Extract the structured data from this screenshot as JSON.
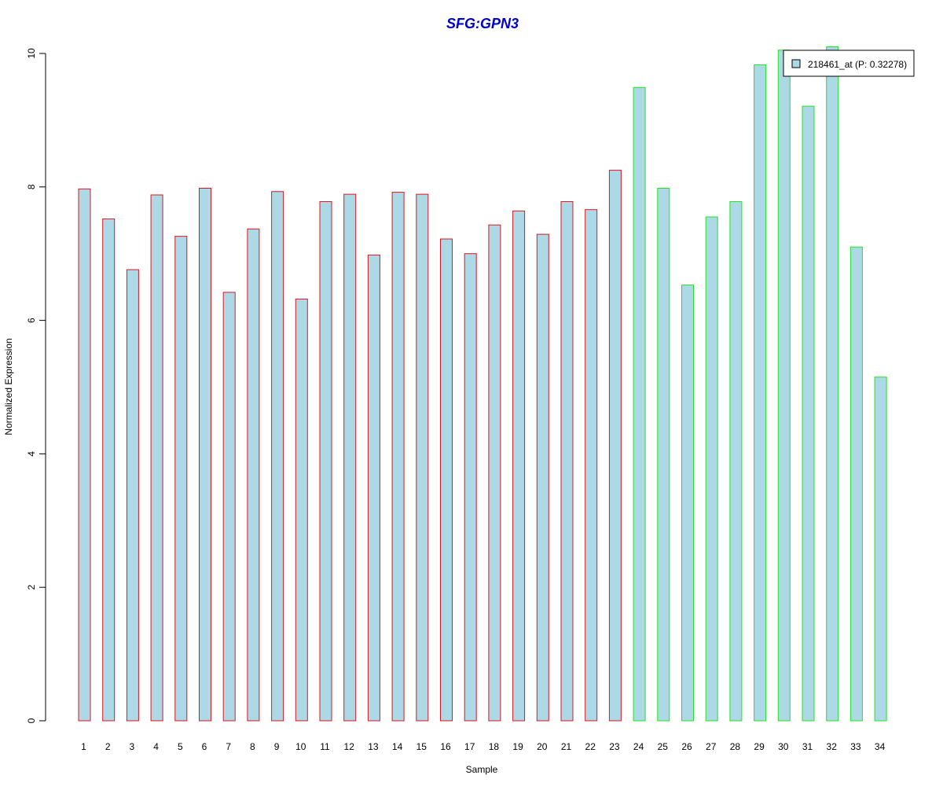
{
  "colors": {
    "bar_fill": "#add8e6",
    "group1_border": "#e0141e",
    "group2_border": "#1ee61e",
    "title": "#0000cc",
    "axis": "#000000"
  },
  "chart_data": {
    "type": "bar",
    "title": "SFG:GPN3",
    "xlabel": "Sample",
    "ylabel": "Normalized Expression",
    "ylim": [
      0,
      10
    ],
    "yticks": [
      0,
      2,
      4,
      6,
      8,
      10
    ],
    "grid": false,
    "legend_position": "top-right",
    "categories": [
      "1",
      "2",
      "3",
      "4",
      "5",
      "6",
      "7",
      "8",
      "9",
      "10",
      "11",
      "12",
      "13",
      "14",
      "15",
      "16",
      "17",
      "18",
      "19",
      "20",
      "21",
      "22",
      "23",
      "24",
      "25",
      "26",
      "27",
      "28",
      "29",
      "30",
      "31",
      "32",
      "33",
      "34"
    ],
    "series": [
      {
        "name": "218461_at (P: 0.32278)",
        "values": [
          7.97,
          7.52,
          6.76,
          7.88,
          7.26,
          7.98,
          6.42,
          7.37,
          7.93,
          6.32,
          7.78,
          7.89,
          6.98,
          7.92,
          7.89,
          7.22,
          7.0,
          7.43,
          7.64,
          7.29,
          7.78,
          7.66,
          8.25,
          9.49,
          7.98,
          6.53,
          7.55,
          7.78,
          9.83,
          10.05,
          9.21,
          10.1,
          7.1,
          5.15
        ]
      }
    ],
    "group_colors": [
      "red",
      "red",
      "red",
      "red",
      "red",
      "red",
      "red",
      "red",
      "red",
      "red",
      "red",
      "red",
      "red",
      "red",
      "red",
      "red",
      "red",
      "red",
      "red",
      "red",
      "red",
      "red",
      "red",
      "green",
      "green",
      "green",
      "green",
      "green",
      "green",
      "green",
      "green",
      "green",
      "green",
      "green"
    ]
  }
}
